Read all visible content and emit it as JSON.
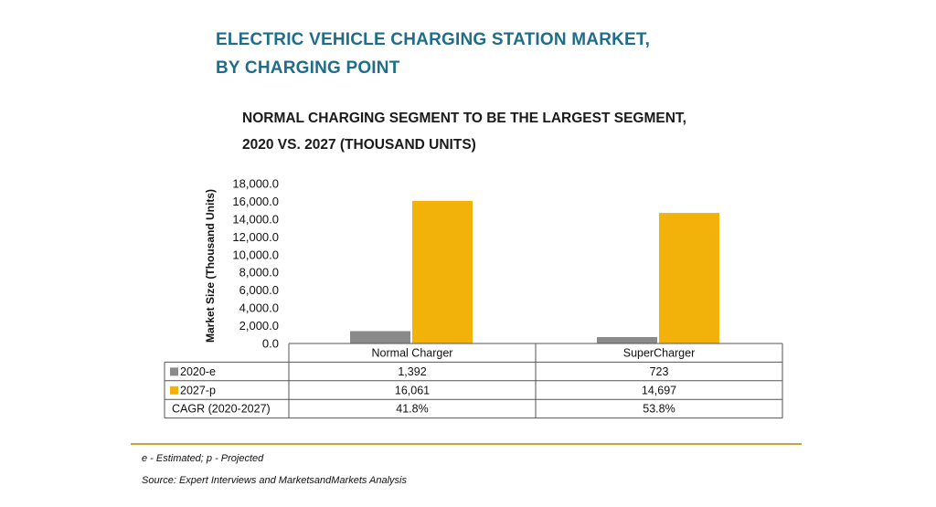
{
  "header": {
    "title_line1": "ELECTRIC VEHICLE CHARGING STATION MARKET,",
    "title_line2": "BY CHARGING POINT",
    "subtitle_line1": "NORMAL CHARGING SEGMENT TO BE THE LARGEST SEGMENT,",
    "subtitle_line2": "2020 VS. 2027 (THOUSAND UNITS)"
  },
  "footer": {
    "note": "e - Estimated; p - Projected",
    "source": "Source: Expert Interviews and MarketsandMarkets Analysis",
    "rule_color": "#c9a43a"
  },
  "chart_data": {
    "type": "bar",
    "categories": [
      "Normal Charger",
      "SuperCharger"
    ],
    "series": [
      {
        "name": "2020-e",
        "values": [
          1392,
          723
        ],
        "labels": [
          "1,392",
          "723"
        ],
        "color": "#8a8a8a"
      },
      {
        "name": "2027-p",
        "values": [
          16061,
          14697
        ],
        "labels": [
          "16,061",
          "14,697"
        ],
        "color": "#f2b20a"
      }
    ],
    "extra_rows": [
      {
        "name": "CAGR (2020-2027)",
        "labels": [
          "41.8%",
          "53.8%"
        ]
      }
    ],
    "ylabel": "Market Size (Thousand Units)",
    "ylim": [
      0,
      18000
    ],
    "yticks": [
      0,
      2000,
      4000,
      6000,
      8000,
      10000,
      12000,
      14000,
      16000,
      18000
    ],
    "ytick_labels": [
      "0.0",
      "2,000.0",
      "4,000.0",
      "6,000.0",
      "8,000.0",
      "10,000.0",
      "12,000.0",
      "14,000.0",
      "16,000.0",
      "18,000.0"
    ],
    "grid": false,
    "legend": "data-table"
  }
}
